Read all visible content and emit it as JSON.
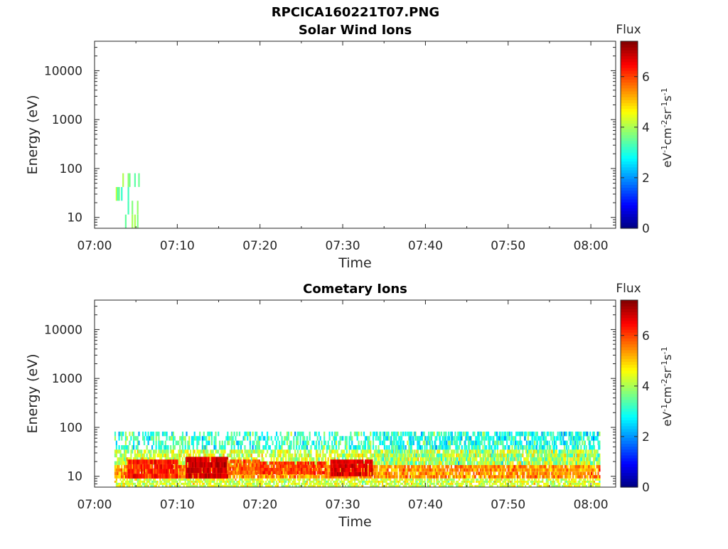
{
  "figure": {
    "title": "RPCICA160221T07.PNG"
  },
  "colormap": "jet",
  "chart_data": [
    {
      "type": "heatmap",
      "title": "Solar Wind Ions",
      "xlabel": "Time",
      "ylabel": "Energy (eV)",
      "xticks": [
        "07:00",
        "07:10",
        "07:20",
        "07:30",
        "07:40",
        "07:50",
        "08:00"
      ],
      "yticks": [
        "10",
        "100",
        "1000",
        "10000"
      ],
      "yscale": "log",
      "ylim": [
        6,
        40000
      ],
      "xlim_minutes": [
        0,
        63
      ],
      "colorbar": {
        "label": "Flux",
        "units": "eV-1cm-2sr-1s-1",
        "ticks": [
          "0",
          "2",
          "4",
          "6"
        ],
        "range": [
          0,
          7.4
        ]
      },
      "regions": [
        {
          "t_start": 2.4,
          "t_end": 5.4,
          "e_min": 6,
          "e_max": 80,
          "flux_mean": 3.6,
          "flux_spread": 0.5,
          "density": 0.25
        }
      ]
    },
    {
      "type": "heatmap",
      "title": "Cometary Ions",
      "xlabel": "Time",
      "ylabel": "Energy (eV)",
      "xticks": [
        "07:00",
        "07:10",
        "07:20",
        "07:30",
        "07:40",
        "07:50",
        "08:00"
      ],
      "yticks": [
        "10",
        "100",
        "1000",
        "10000"
      ],
      "yscale": "log",
      "ylim": [
        6,
        40000
      ],
      "xlim_minutes": [
        0,
        63
      ],
      "colorbar": {
        "label": "Flux",
        "units": "eV-1cm-2sr-1s-1",
        "ticks": [
          "0",
          "2",
          "4",
          "6"
        ],
        "range": [
          0,
          7.4
        ]
      },
      "regions": [
        {
          "t_start": 2.4,
          "t_end": 61,
          "e_min": 35,
          "e_max": 82,
          "flux_mean": 3.2,
          "flux_spread": 0.7,
          "density": 0.5
        },
        {
          "t_start": 2.4,
          "t_end": 61,
          "e_min": 17,
          "e_max": 35,
          "flux_mean": 4.3,
          "flux_spread": 0.7,
          "density": 0.75
        },
        {
          "t_start": 2.4,
          "t_end": 61,
          "e_min": 9,
          "e_max": 17,
          "flux_mean": 5.4,
          "flux_spread": 0.6,
          "density": 0.9
        },
        {
          "t_start": 2.4,
          "t_end": 61,
          "e_min": 6,
          "e_max": 9,
          "flux_mean": 4.3,
          "flux_spread": 0.6,
          "density": 0.75
        },
        {
          "t_start": 4,
          "t_end": 10,
          "e_min": 9,
          "e_max": 22,
          "flux_mean": 6.3,
          "flux_spread": 0.4,
          "density": 0.9
        },
        {
          "t_start": 11,
          "t_end": 16,
          "e_min": 9,
          "e_max": 25,
          "flux_mean": 6.8,
          "flux_spread": 0.3,
          "density": 0.95
        },
        {
          "t_start": 16,
          "t_end": 20,
          "e_min": 11,
          "e_max": 22,
          "flux_mean": 5.8,
          "flux_spread": 0.4,
          "density": 0.8
        },
        {
          "t_start": 20,
          "t_end": 28,
          "e_min": 11,
          "e_max": 20,
          "flux_mean": 6.1,
          "flux_spread": 0.4,
          "density": 0.85
        },
        {
          "t_start": 28.5,
          "t_end": 33.5,
          "e_min": 10,
          "e_max": 22,
          "flux_mean": 6.7,
          "flux_spread": 0.3,
          "density": 0.95
        },
        {
          "t_start": 34,
          "t_end": 61,
          "e_min": 35,
          "e_max": 82,
          "flux_mean": 2.8,
          "flux_spread": 0.6,
          "density": 0.35
        },
        {
          "t_start": 34,
          "t_end": 61,
          "e_min": 17,
          "e_max": 35,
          "flux_mean": 3.8,
          "flux_spread": 0.8,
          "density": 0.55
        }
      ]
    }
  ]
}
